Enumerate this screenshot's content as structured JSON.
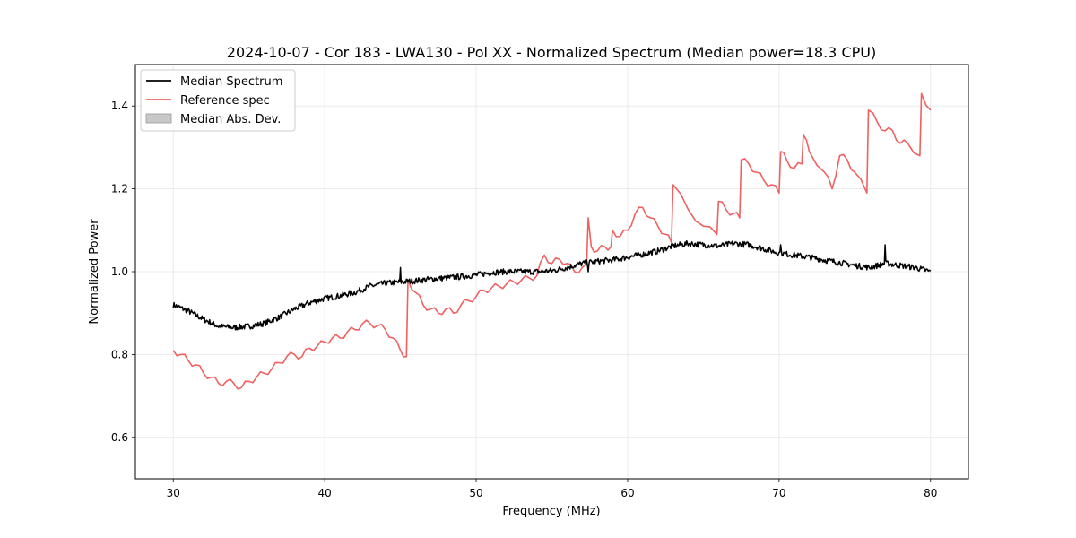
{
  "chart_data": {
    "type": "line",
    "title": "2024-10-07 - Cor 183 - LWA130 - Pol XX - Normalized Spectrum (Median power=18.3 CPU)",
    "xlabel": "Frequency (MHz)",
    "ylabel": "Normalized Power",
    "xlim": [
      27.5,
      82.5
    ],
    "ylim": [
      0.5,
      1.5
    ],
    "xticks": [
      30,
      40,
      50,
      60,
      70,
      80
    ],
    "yticks": [
      0.6,
      0.8,
      1.0,
      1.2,
      1.4
    ],
    "xtick_labels": [
      "30",
      "40",
      "50",
      "60",
      "70",
      "80"
    ],
    "ytick_labels": [
      "0.6",
      "0.8",
      "1.0",
      "1.2",
      "1.4"
    ],
    "grid": true,
    "legend": {
      "position": "top-left",
      "entries": [
        {
          "label": "Median Spectrum",
          "kind": "line",
          "color": "#000000"
        },
        {
          "label": "Reference spec",
          "kind": "line",
          "color": "#f06060"
        },
        {
          "label": "Median Abs. Dev.",
          "kind": "patch",
          "color": "#c8c8c8"
        }
      ]
    },
    "series": [
      {
        "name": "Median Spectrum",
        "color": "#000000",
        "x": [
          30,
          31,
          32,
          33,
          34,
          35,
          36,
          37,
          38,
          39,
          40,
          41,
          42,
          43,
          44,
          45,
          46,
          47,
          48,
          49,
          50,
          51,
          52,
          53,
          54,
          55,
          56,
          57,
          58,
          59,
          60,
          61,
          62,
          63,
          64,
          65,
          66,
          67,
          68,
          69,
          70,
          71,
          72,
          73,
          74,
          75,
          76,
          77,
          78,
          79,
          80
        ],
        "y": [
          0.92,
          0.905,
          0.885,
          0.868,
          0.865,
          0.868,
          0.875,
          0.89,
          0.91,
          0.925,
          0.935,
          0.942,
          0.95,
          0.965,
          0.972,
          0.975,
          0.978,
          0.982,
          0.985,
          0.988,
          0.992,
          0.998,
          1.0,
          1.0,
          1.0,
          1.002,
          1.01,
          1.02,
          1.025,
          1.028,
          1.035,
          1.042,
          1.05,
          1.062,
          1.068,
          1.065,
          1.062,
          1.068,
          1.065,
          1.055,
          1.045,
          1.04,
          1.035,
          1.028,
          1.022,
          1.015,
          1.01,
          1.02,
          1.015,
          1.01,
          1.0
        ],
        "spikes": [
          [
            45.0,
            1.01
          ],
          [
            57.4,
            1.0
          ],
          [
            70.1,
            1.065
          ],
          [
            77.0,
            1.065
          ]
        ]
      },
      {
        "name": "Reference spec",
        "color": "#f06060",
        "x": [
          30.0,
          30.5,
          31.0,
          31.5,
          32.0,
          32.5,
          33.0,
          33.5,
          34.0,
          34.5,
          35.0,
          35.5,
          36.0,
          36.5,
          37.0,
          37.5,
          38.0,
          38.5,
          39.0,
          39.5,
          40.0,
          40.5,
          41.0,
          41.5,
          42.0,
          42.5,
          43.0,
          43.5,
          44.0,
          44.5,
          45.0,
          45.4,
          45.5,
          46.0,
          46.5,
          47.0,
          47.5,
          48.0,
          48.5,
          49.0,
          49.5,
          50.0,
          50.5,
          51.0,
          51.5,
          52.0,
          52.5,
          53.0,
          53.5,
          54.0,
          54.5,
          55.0,
          55.5,
          56.0,
          56.5,
          57.0,
          57.3,
          57.4,
          57.6,
          58.0,
          58.5,
          58.9,
          59.0,
          59.5,
          60.0,
          60.5,
          61.0,
          61.5,
          62.0,
          62.5,
          62.9,
          63.0,
          64.0,
          65.0,
          65.9,
          66.0,
          66.5,
          67.0,
          67.4,
          67.5,
          68.0,
          68.5,
          69.0,
          69.5,
          70.0,
          70.1,
          70.5,
          71.0,
          71.5,
          71.6,
          72.0,
          73.0,
          73.5,
          74.0,
          74.5,
          75.0,
          75.8,
          75.9,
          76.5,
          77.0,
          77.5,
          78.0,
          78.5,
          79.3,
          79.4,
          80.0
        ],
        "y": [
          0.81,
          0.8,
          0.785,
          0.775,
          0.755,
          0.745,
          0.73,
          0.735,
          0.73,
          0.72,
          0.735,
          0.745,
          0.755,
          0.765,
          0.78,
          0.795,
          0.8,
          0.795,
          0.815,
          0.82,
          0.83,
          0.84,
          0.84,
          0.855,
          0.86,
          0.875,
          0.875,
          0.87,
          0.86,
          0.84,
          0.81,
          0.795,
          0.98,
          0.95,
          0.92,
          0.91,
          0.9,
          0.91,
          0.9,
          0.92,
          0.93,
          0.94,
          0.955,
          0.96,
          0.965,
          0.97,
          0.975,
          0.98,
          0.985,
          0.99,
          1.04,
          1.02,
          1.03,
          1.02,
          1.0,
          1.01,
          1.02,
          1.13,
          1.06,
          1.05,
          1.06,
          1.06,
          1.1,
          1.085,
          1.1,
          1.14,
          1.155,
          1.13,
          1.11,
          1.09,
          1.07,
          1.21,
          1.15,
          1.11,
          1.09,
          1.17,
          1.15,
          1.14,
          1.13,
          1.27,
          1.26,
          1.24,
          1.22,
          1.21,
          1.19,
          1.29,
          1.27,
          1.25,
          1.26,
          1.33,
          1.29,
          1.24,
          1.2,
          1.28,
          1.27,
          1.24,
          1.19,
          1.39,
          1.36,
          1.34,
          1.34,
          1.31,
          1.31,
          1.28,
          1.43,
          1.39
        ]
      }
    ]
  }
}
